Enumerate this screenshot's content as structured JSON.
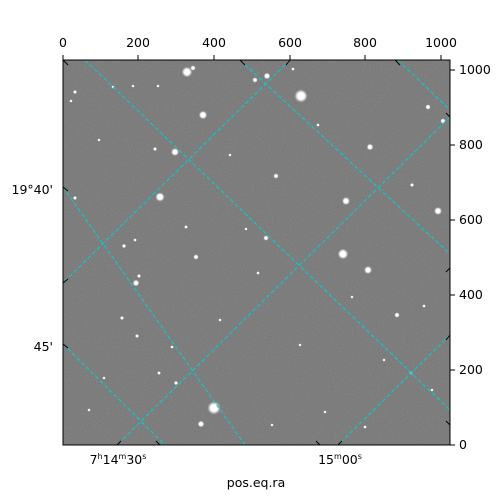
{
  "figure": {
    "xlabel": "pos.eq.ra",
    "pixel_x_ticks": [
      "0",
      "200",
      "400",
      "600",
      "800",
      "1000"
    ],
    "pixel_y_ticks": [
      "0",
      "200",
      "400",
      "600",
      "800",
      "1000"
    ],
    "ra_ticks": [
      {
        "main": "7",
        "sup1": "h",
        "mid": "14",
        "sup2": "m",
        "end": "30",
        "sup3": "s"
      },
      {
        "main": "",
        "sup1": "",
        "mid": "15",
        "sup2": "m",
        "end": "00",
        "sup3": "s"
      }
    ],
    "dec_ticks": [
      "19°40'",
      "45'"
    ],
    "grid_color": "#00d0d0",
    "image_style": "grayscale star field",
    "frame_color": "#000000"
  }
}
